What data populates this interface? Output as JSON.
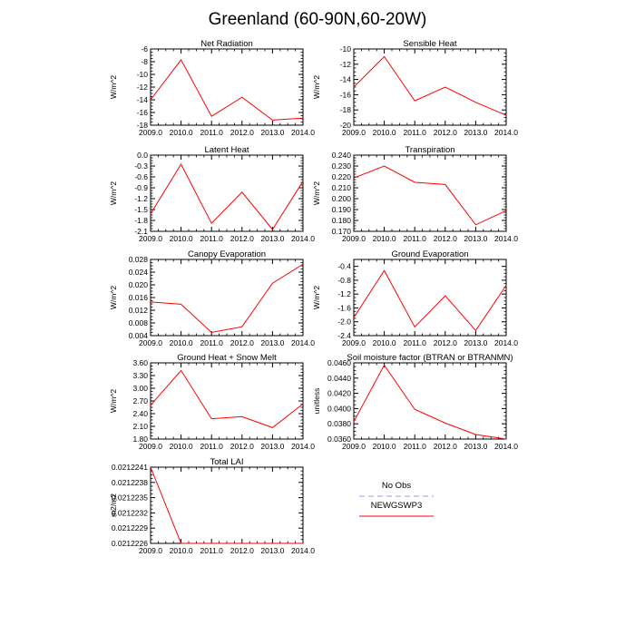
{
  "figure": {
    "title": "Greenland (60-90N,60-20W)",
    "legend": [
      {
        "label": "No Obs",
        "color": "#9a9aff",
        "dashed": true
      },
      {
        "label": "NEWGSWP3",
        "color": "#ff0000",
        "dashed": false
      }
    ]
  },
  "chart_data": [
    {
      "type": "line",
      "title": "Net Radiation",
      "ylabel": "W/m^2",
      "x": [
        2009,
        2010,
        2011,
        2012,
        2013,
        2014
      ],
      "series": [
        {
          "name": "NEWGSWP3",
          "color": "#ff0000",
          "values": [
            -14.0,
            -7.7,
            -16.6,
            -13.6,
            -17.2,
            -16.9
          ]
        }
      ],
      "ylim": [
        -18,
        -6
      ],
      "yticks": [
        "-6",
        "-8",
        "-10",
        "-12",
        "-14",
        "-16",
        "-18"
      ],
      "xticks": [
        "2009.0",
        "2010.0",
        "2011.0",
        "2012.0",
        "2013.0",
        "2014.0"
      ]
    },
    {
      "type": "line",
      "title": "Sensible Heat",
      "ylabel": "W/m^2",
      "x": [
        2009,
        2010,
        2011,
        2012,
        2013,
        2014
      ],
      "series": [
        {
          "name": "NEWGSWP3",
          "color": "#ff0000",
          "values": [
            -15.0,
            -11.0,
            -16.8,
            -15.0,
            -17.0,
            -18.7
          ]
        }
      ],
      "ylim": [
        -20,
        -10
      ],
      "yticks": [
        "-10",
        "-12",
        "-14",
        "-16",
        "-18",
        "-20"
      ],
      "xticks": [
        "2009.0",
        "2010.0",
        "2011.0",
        "2012.0",
        "2013.0",
        "2014.0"
      ]
    },
    {
      "type": "line",
      "title": "Latent Heat",
      "ylabel": "W/m^2",
      "x": [
        2009,
        2010,
        2011,
        2012,
        2013,
        2014
      ],
      "series": [
        {
          "name": "NEWGSWP3",
          "color": "#ff0000",
          "values": [
            -1.62,
            -0.25,
            -1.88,
            -1.02,
            -2.05,
            -0.72
          ]
        }
      ],
      "ylim": [
        -2.1,
        0.0
      ],
      "yticks": [
        "0.0",
        "-0.3",
        "-0.6",
        "-0.9",
        "-1.2",
        "-1.5",
        "-1.8",
        "-2.1"
      ],
      "xticks": [
        "2009.0",
        "2010.0",
        "2011.0",
        "2012.0",
        "2013.0",
        "2014.0"
      ]
    },
    {
      "type": "line",
      "title": "Transpiration",
      "ylabel": "W/m^2",
      "x": [
        2009,
        2010,
        2011,
        2012,
        2013,
        2014
      ],
      "series": [
        {
          "name": "NEWGSWP3",
          "color": "#ff0000",
          "values": [
            0.219,
            0.23,
            0.215,
            0.213,
            0.176,
            0.189
          ]
        }
      ],
      "ylim": [
        0.17,
        0.24
      ],
      "yticks": [
        "0.240",
        "0.230",
        "0.220",
        "0.210",
        "0.200",
        "0.190",
        "0.180",
        "0.170"
      ],
      "xticks": [
        "2009.0",
        "2010.0",
        "2011.0",
        "2012.0",
        "2013.0",
        "2014.0"
      ]
    },
    {
      "type": "line",
      "title": "Canopy Evaporation",
      "ylabel": "W/m^2",
      "x": [
        2009,
        2010,
        2011,
        2012,
        2013,
        2014
      ],
      "series": [
        {
          "name": "NEWGSWP3",
          "color": "#ff0000",
          "values": [
            0.0146,
            0.0139,
            0.005,
            0.0068,
            0.0205,
            0.0265
          ]
        }
      ],
      "ylim": [
        0.004,
        0.028
      ],
      "yticks": [
        "0.028",
        "0.024",
        "0.020",
        "0.016",
        "0.012",
        "0.008",
        "0.004"
      ],
      "xticks": [
        "2009.0",
        "2010.0",
        "2011.0",
        "2012.0",
        "2013.0",
        "2014.0"
      ]
    },
    {
      "type": "line",
      "title": "Ground Evaporation",
      "ylabel": "W/m^2",
      "x": [
        2009,
        2010,
        2011,
        2012,
        2013,
        2014
      ],
      "series": [
        {
          "name": "NEWGSWP3",
          "color": "#ff0000",
          "values": [
            -1.88,
            -0.52,
            -2.15,
            -1.25,
            -2.25,
            -0.95
          ]
        }
      ],
      "ylim": [
        -2.4,
        -0.2
      ],
      "yticks": [
        "-0.4",
        "-0.8",
        "-1.2",
        "-1.6",
        "-2.0",
        "-2.4"
      ],
      "xticks": [
        "2009.0",
        "2010.0",
        "2011.0",
        "2012.0",
        "2013.0",
        "2014.0"
      ]
    },
    {
      "type": "line",
      "title": "Ground Heat + Snow Melt",
      "ylabel": "W/m^2",
      "x": [
        2009,
        2010,
        2011,
        2012,
        2013,
        2014
      ],
      "series": [
        {
          "name": "NEWGSWP3",
          "color": "#ff0000",
          "values": [
            2.6,
            3.42,
            2.28,
            2.33,
            2.07,
            2.63
          ]
        }
      ],
      "ylim": [
        1.8,
        3.6
      ],
      "yticks": [
        "3.60",
        "3.30",
        "3.00",
        "2.70",
        "2.40",
        "2.10",
        "1.80"
      ],
      "xticks": [
        "2009.0",
        "2010.0",
        "2011.0",
        "2012.0",
        "2013.0",
        "2014.0"
      ]
    },
    {
      "type": "line",
      "title": "Soil moisture factor (BTRAN or BTRANMN)",
      "ylabel": "unitless",
      "x": [
        2009,
        2010,
        2011,
        2012,
        2013,
        2014
      ],
      "series": [
        {
          "name": "NEWGSWP3",
          "color": "#ff0000",
          "values": [
            0.0383,
            0.0457,
            0.0399,
            0.0381,
            0.0366,
            0.036
          ]
        }
      ],
      "ylim": [
        0.036,
        0.046
      ],
      "yticks": [
        "0.0460",
        "0.0440",
        "0.0420",
        "0.0400",
        "0.0380",
        "0.0360"
      ],
      "xticks": [
        "2009.0",
        "2010.0",
        "2011.0",
        "2012.0",
        "2013.0",
        "2014.0"
      ]
    },
    {
      "type": "line",
      "title": "Total LAI",
      "ylabel": "m2/m2",
      "x": [
        2009,
        2010,
        2011,
        2012,
        2013,
        2014
      ],
      "series": [
        {
          "name": "NEWGSWP3",
          "color": "#ff0000",
          "values": [
            0.0212241,
            0.0212226,
            0.0212226,
            0.0212226,
            0.0212226,
            0.0212226
          ]
        }
      ],
      "ylim": [
        0.0212226,
        0.0212241
      ],
      "yticks": [
        "0.0212241",
        "0.0212238",
        "0.0212235",
        "0.0212232",
        "0.0212229",
        "0.0212226"
      ],
      "xticks": [
        "2009.0",
        "2010.0",
        "2011.0",
        "2012.0",
        "2013.0",
        "2014.0"
      ]
    }
  ]
}
